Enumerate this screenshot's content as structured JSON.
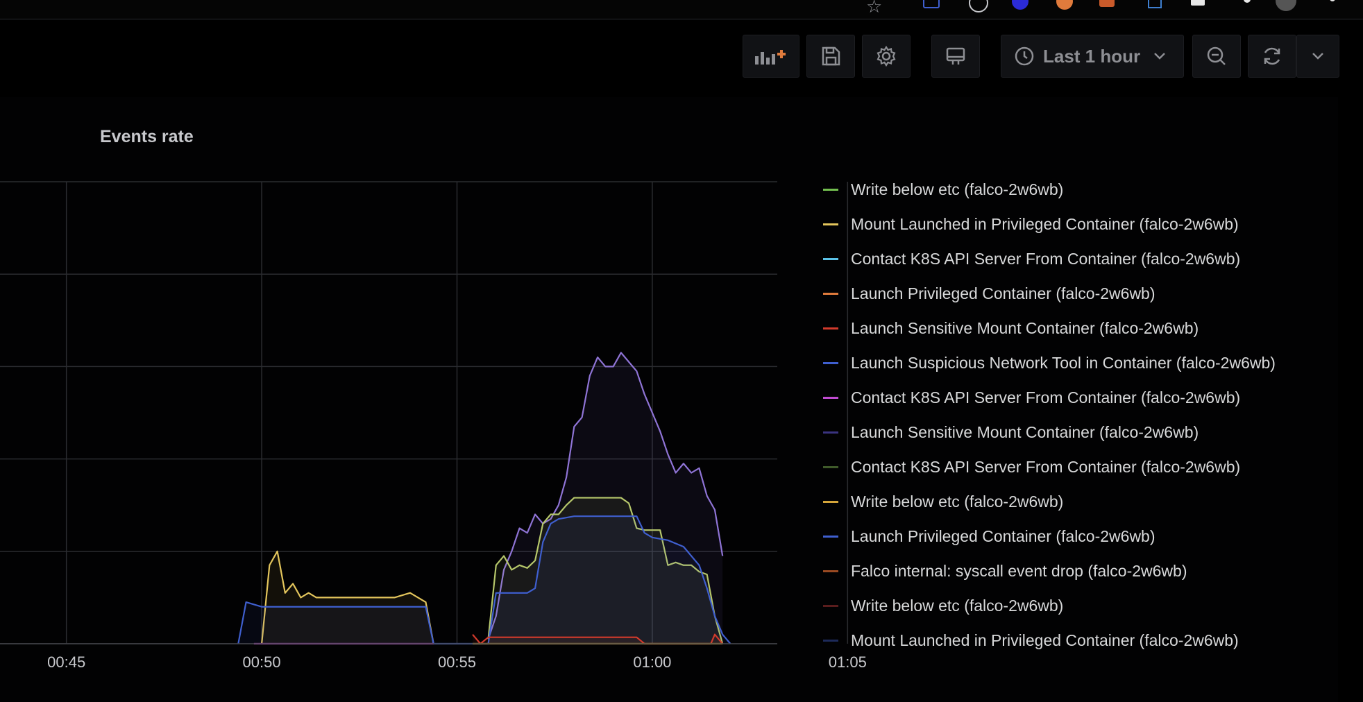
{
  "toolbar": {
    "add_panel_icon": "add-panel-icon",
    "save_icon": "save-icon",
    "settings_icon": "gear-icon",
    "tv_icon": "tv-mode-icon",
    "time_range": "Last 1 hour",
    "clock_icon": "clock-icon",
    "zoom_out_icon": "zoom-out-icon",
    "refresh_icon": "refresh-icon",
    "refresh_dropdown_icon": "chevron-down-icon"
  },
  "panel": {
    "title": "Events rate"
  },
  "colors": {
    "grid": "#2b2c30",
    "purple": "#8f74d6",
    "yellow": "#e3c55c",
    "green_yellow": "#b6c76b",
    "blue": "#3f5fcf",
    "orange": "#e07b3c",
    "red": "#d23a2c",
    "magenta": "#c04bd1",
    "gold": "#d4a53a",
    "cyan": "#5bc2e7",
    "green": "#73bf4f"
  },
  "chart_data": {
    "type": "area",
    "title": "Events rate",
    "x_ticks": [
      "00:45",
      "00:50",
      "00:55",
      "01:00",
      "01:05"
    ],
    "y_ticks": [],
    "grid": true,
    "legend_placement": "right",
    "series": [
      {
        "name": "Contact K8S API Server From Container (falco-2w6wb)",
        "color": "#8f74d6",
        "points": [
          [
            -4.2,
            0.05
          ],
          [
            -4.0,
            0.3
          ],
          [
            -3.8,
            0.8
          ],
          [
            -3.6,
            1.0
          ],
          [
            -3.4,
            1.25
          ],
          [
            -3.2,
            1.2
          ],
          [
            -3.0,
            1.4
          ],
          [
            -2.8,
            1.3
          ],
          [
            -2.6,
            1.35
          ],
          [
            -2.4,
            1.5
          ],
          [
            -2.2,
            1.8
          ],
          [
            -2.0,
            2.35
          ],
          [
            -1.8,
            2.45
          ],
          [
            -1.6,
            2.9
          ],
          [
            -1.4,
            3.1
          ],
          [
            -1.2,
            3.0
          ],
          [
            -1.0,
            3.0
          ],
          [
            -0.8,
            3.15
          ],
          [
            -0.6,
            3.05
          ],
          [
            -0.4,
            2.95
          ],
          [
            -0.2,
            2.7
          ],
          [
            0.0,
            2.5
          ],
          [
            0.2,
            2.3
          ],
          [
            0.4,
            2.05
          ],
          [
            0.6,
            1.85
          ],
          [
            0.8,
            1.95
          ],
          [
            1.0,
            1.85
          ],
          [
            1.2,
            1.9
          ],
          [
            1.4,
            1.6
          ],
          [
            1.6,
            1.45
          ],
          [
            1.8,
            0.95
          ]
        ]
      },
      {
        "name": "Mount Launched in Privileged Container (falco-2w6wb)",
        "color": "#e3c55c",
        "points": [
          [
            -10.0,
            0.0
          ],
          [
            -9.8,
            0.85
          ],
          [
            -9.6,
            1.0
          ],
          [
            -9.4,
            0.55
          ],
          [
            -9.2,
            0.65
          ],
          [
            -9.0,
            0.5
          ],
          [
            -8.8,
            0.55
          ],
          [
            -8.6,
            0.5
          ],
          [
            -8.0,
            0.5
          ],
          [
            -7.2,
            0.5
          ],
          [
            -6.6,
            0.5
          ],
          [
            -6.2,
            0.55
          ],
          [
            -5.8,
            0.45
          ],
          [
            -5.6,
            0.0
          ]
        ]
      },
      {
        "name": "Write below etc (falco-2w6wb)",
        "color": "#b6c76b",
        "points": [
          [
            -4.2,
            0.05
          ],
          [
            -4.0,
            0.85
          ],
          [
            -3.8,
            0.95
          ],
          [
            -3.6,
            0.8
          ],
          [
            -3.4,
            0.85
          ],
          [
            -3.2,
            0.82
          ],
          [
            -3.0,
            0.9
          ],
          [
            -2.8,
            1.3
          ],
          [
            -2.6,
            1.4
          ],
          [
            -2.4,
            1.4
          ],
          [
            -2.2,
            1.5
          ],
          [
            -2.0,
            1.58
          ],
          [
            -1.6,
            1.58
          ],
          [
            -1.2,
            1.58
          ],
          [
            -0.8,
            1.58
          ],
          [
            -0.6,
            1.52
          ],
          [
            -0.4,
            1.25
          ],
          [
            -0.2,
            1.23
          ],
          [
            0.0,
            1.23
          ],
          [
            0.2,
            1.23
          ],
          [
            0.4,
            0.85
          ],
          [
            0.6,
            0.88
          ],
          [
            0.8,
            0.85
          ],
          [
            1.0,
            0.85
          ],
          [
            1.2,
            0.78
          ],
          [
            1.4,
            0.75
          ],
          [
            1.6,
            0.3
          ],
          [
            1.8,
            0.0
          ]
        ]
      },
      {
        "name": "Launch Privileged Container (falco-2w6wb)",
        "color": "#3f5fcf",
        "points": [
          [
            -10.6,
            0.0
          ],
          [
            -10.4,
            0.45
          ],
          [
            -10.0,
            0.4
          ],
          [
            -9.4,
            0.4
          ],
          [
            -8.6,
            0.4
          ],
          [
            -7.8,
            0.4
          ],
          [
            -7.0,
            0.4
          ],
          [
            -6.2,
            0.4
          ],
          [
            -5.8,
            0.4
          ],
          [
            -5.6,
            0.0
          ],
          [
            -4.2,
            0.0
          ],
          [
            -4.0,
            0.55
          ],
          [
            -3.6,
            0.55
          ],
          [
            -3.2,
            0.55
          ],
          [
            -3.0,
            0.6
          ],
          [
            -2.8,
            1.1
          ],
          [
            -2.6,
            1.3
          ],
          [
            -2.4,
            1.35
          ],
          [
            -2.0,
            1.38
          ],
          [
            -1.4,
            1.38
          ],
          [
            -1.0,
            1.38
          ],
          [
            -0.4,
            1.38
          ],
          [
            -0.2,
            1.2
          ],
          [
            0.0,
            1.15
          ],
          [
            0.4,
            1.12
          ],
          [
            0.8,
            1.05
          ],
          [
            1.2,
            0.85
          ],
          [
            1.4,
            0.6
          ],
          [
            1.6,
            0.3
          ],
          [
            1.8,
            0.1
          ],
          [
            2.0,
            0.0
          ]
        ]
      },
      {
        "name": "Falco internal: syscall event drop (falco-2w6wb)",
        "color": "#d23a2c",
        "points": [
          [
            -4.6,
            0.1
          ],
          [
            -4.4,
            0.0
          ],
          [
            -4.2,
            0.07
          ],
          [
            -3.4,
            0.07
          ],
          [
            -2.6,
            0.07
          ],
          [
            -1.8,
            0.07
          ],
          [
            -1.0,
            0.07
          ],
          [
            -0.4,
            0.07
          ],
          [
            -0.2,
            0.0
          ],
          [
            1.5,
            0.0
          ],
          [
            1.6,
            0.1
          ],
          [
            1.8,
            0.0
          ]
        ]
      },
      {
        "name": "Contact K8S API Server From Container (falco-2w6wb)",
        "color": "#c04bd1",
        "points": [
          [
            -10.2,
            0.0
          ],
          [
            -5.6,
            0.0
          ]
        ]
      },
      {
        "name": "Mount Launched in Privileged Container (falco-2w6wb)",
        "color": "#d4a53a",
        "points": [
          [
            -4.6,
            0.0
          ],
          [
            1.8,
            0.0
          ]
        ]
      }
    ]
  },
  "legend": [
    {
      "label": "Write below etc (falco-2w6wb)",
      "color": "#73bf4f"
    },
    {
      "label": "Mount Launched in Privileged Container (falco-2w6wb)",
      "color": "#e3c55c"
    },
    {
      "label": "Contact K8S API Server From Container (falco-2w6wb)",
      "color": "#5bc2e7"
    },
    {
      "label": "Launch Privileged Container (falco-2w6wb)",
      "color": "#e07b3c"
    },
    {
      "label": "Launch Sensitive Mount Container (falco-2w6wb)",
      "color": "#d23a2c"
    },
    {
      "label": "Launch Suspicious Network Tool in Container (falco-2w6wb)",
      "color": "#3f5fcf"
    },
    {
      "label": "Contact K8S API Server From Container (falco-2w6wb)",
      "color": "#c04bd1"
    },
    {
      "label": "Launch Sensitive Mount Container (falco-2w6wb)",
      "color": "#3a3480"
    },
    {
      "label": "Contact K8S API Server From Container (falco-2w6wb)",
      "color": "#3f5a2a"
    },
    {
      "label": "Write below etc (falco-2w6wb)",
      "color": "#d4a53a"
    },
    {
      "label": "Launch Privileged Container (falco-2w6wb)",
      "color": "#3f5fcf"
    },
    {
      "label": "Falco internal: syscall event drop (falco-2w6wb)",
      "color": "#9a4a22"
    },
    {
      "label": "Write below etc (falco-2w6wb)",
      "color": "#5a1d1d"
    },
    {
      "label": "Mount Launched in Privileged Container (falco-2w6wb)",
      "color": "#1d2a5a"
    }
  ]
}
